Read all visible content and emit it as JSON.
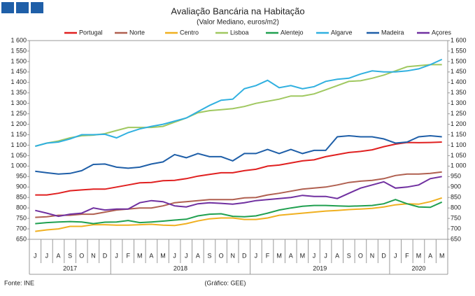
{
  "chart_data": {
    "type": "line",
    "title": "Avaliação Bancária na Habitação",
    "subtitle": "(Valor Mediano, euros/m2)",
    "source": "Fonte: INE",
    "credit": "(Gráfico: GEE)",
    "categories": [
      "J",
      "J",
      "A",
      "S",
      "O",
      "N",
      "D",
      "J",
      "F",
      "M",
      "A",
      "M",
      "J",
      "J",
      "A",
      "S",
      "O",
      "N",
      "D",
      "J",
      "F",
      "M",
      "A",
      "M",
      "J",
      "J",
      "A",
      "S",
      "O",
      "N",
      "D",
      "J",
      "F",
      "M",
      "A",
      "M"
    ],
    "year_labels": [
      "2017",
      "2018",
      "2019",
      "2020"
    ],
    "ylim": [
      650,
      1600
    ],
    "yticks": [
      650,
      700,
      750,
      800,
      850,
      900,
      950,
      {
        "value": 1000,
        "label": "1 000"
      },
      {
        "value": 1050,
        "label": "1 050"
      },
      {
        "value": 1100,
        "label": "1 100"
      },
      {
        "value": 1150,
        "label": "1 150"
      },
      {
        "value": 1200,
        "label": "1 200"
      },
      {
        "value": 1250,
        "label": "1 250"
      },
      {
        "value": 1300,
        "label": "1 300"
      },
      {
        "value": 1350,
        "label": "1 350"
      },
      {
        "value": 1400,
        "label": "1 400"
      },
      {
        "value": 1450,
        "label": "1 450"
      },
      {
        "value": 1500,
        "label": "1 500"
      },
      {
        "value": 1550,
        "label": "1 550"
      },
      {
        "value": 1600,
        "label": "1 600"
      }
    ],
    "grid": false,
    "series": [
      {
        "name": "Portugal",
        "color": "#e02020",
        "values": [
          862,
          862,
          870,
          882,
          886,
          890,
          890,
          900,
          910,
          920,
          922,
          930,
          932,
          940,
          952,
          960,
          968,
          968,
          978,
          985,
          1000,
          1005,
          1015,
          1025,
          1030,
          1045,
          1055,
          1065,
          1070,
          1078,
          1093,
          1105,
          1113,
          1112,
          1113,
          1115
        ]
      },
      {
        "name": "Norte",
        "color": "#b06050",
        "values": [
          755,
          758,
          765,
          765,
          770,
          770,
          780,
          790,
          795,
          800,
          800,
          810,
          825,
          830,
          835,
          840,
          840,
          840,
          848,
          850,
          862,
          870,
          880,
          890,
          895,
          900,
          910,
          922,
          928,
          932,
          940,
          955,
          962,
          962,
          965,
          972
        ]
      },
      {
        "name": "Centro",
        "color": "#f0b020",
        "values": [
          688,
          695,
          700,
          712,
          712,
          720,
          720,
          718,
          718,
          720,
          722,
          718,
          716,
          725,
          738,
          748,
          752,
          752,
          745,
          745,
          752,
          765,
          770,
          775,
          780,
          785,
          788,
          792,
          795,
          798,
          805,
          815,
          820,
          818,
          830,
          848
        ]
      },
      {
        "name": "Lisboa",
        "color": "#a0c860",
        "values": [
          1095,
          1110,
          1120,
          1135,
          1145,
          1148,
          1155,
          1170,
          1185,
          1185,
          1185,
          1190,
          1210,
          1230,
          1255,
          1265,
          1270,
          1275,
          1285,
          1300,
          1310,
          1320,
          1335,
          1335,
          1345,
          1365,
          1385,
          1405,
          1408,
          1420,
          1435,
          1455,
          1475,
          1480,
          1485,
          1485
        ]
      },
      {
        "name": "Alentejo",
        "color": "#20a050",
        "values": [
          725,
          730,
          733,
          735,
          733,
          725,
          732,
          733,
          740,
          730,
          733,
          737,
          742,
          746,
          762,
          770,
          772,
          760,
          758,
          762,
          775,
          790,
          800,
          808,
          812,
          812,
          810,
          808,
          810,
          812,
          820,
          840,
          820,
          805,
          803,
          828
        ]
      },
      {
        "name": "Algarve",
        "color": "#30b0e0",
        "values": [
          1095,
          1110,
          1115,
          1130,
          1150,
          1150,
          1152,
          1135,
          1160,
          1178,
          1190,
          1200,
          1215,
          1230,
          1260,
          1290,
          1315,
          1320,
          1370,
          1385,
          1410,
          1375,
          1385,
          1370,
          1380,
          1405,
          1415,
          1420,
          1440,
          1455,
          1450,
          1450,
          1455,
          1465,
          1485,
          1510
        ]
      },
      {
        "name": "Madeira",
        "color": "#1f5fa8",
        "values": [
          975,
          968,
          962,
          965,
          978,
          1008,
          1010,
          995,
          990,
          995,
          1010,
          1020,
          1055,
          1040,
          1060,
          1045,
          1045,
          1025,
          1060,
          1060,
          1080,
          1060,
          1080,
          1060,
          1075,
          1075,
          1140,
          1145,
          1140,
          1140,
          1130,
          1110,
          1115,
          1140,
          1145,
          1140
        ]
      },
      {
        "name": "Açores",
        "color": "#7030a0",
        "values": [
          788,
          775,
          760,
          770,
          775,
          800,
          790,
          795,
          795,
          825,
          835,
          830,
          810,
          805,
          820,
          825,
          822,
          818,
          825,
          835,
          840,
          845,
          850,
          860,
          855,
          855,
          845,
          870,
          895,
          910,
          925,
          895,
          900,
          910,
          940,
          950
        ]
      }
    ]
  }
}
